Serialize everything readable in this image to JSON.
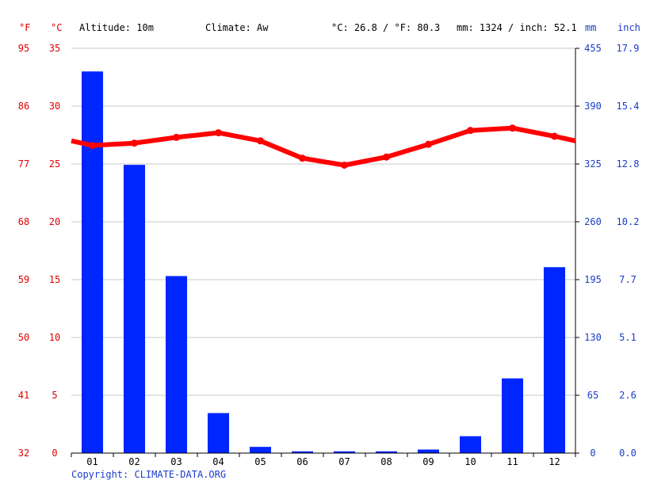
{
  "header": {
    "altitude": "Altitude: 10m",
    "climate": "Climate: Aw",
    "avg_temp": "°C: 26.8 / °F: 80.3",
    "precip_total": "mm: 1324 / inch: 52.1"
  },
  "units": {
    "fahrenheit": "°F",
    "celsius": "°C",
    "mm": "mm",
    "inch": "inch"
  },
  "copyright": "Copyright: CLIMATE-DATA.ORG",
  "colors": {
    "temperature": "#ff0000",
    "precipitation": "#0026ff",
    "grid": "#c8c8c8",
    "axis_text_temp": "#e00000",
    "axis_text_precip": "#1a3cc8"
  },
  "chart_data": {
    "type": "bar",
    "categories": [
      "01",
      "02",
      "03",
      "04",
      "05",
      "06",
      "07",
      "08",
      "09",
      "10",
      "11",
      "12"
    ],
    "series": [
      {
        "type": "bar",
        "axis": "right",
        "values": [
          429,
          324,
          199,
          45,
          7,
          2,
          2,
          2,
          4,
          19,
          84,
          209
        ]
      },
      {
        "type": "line",
        "axis": "left",
        "values": [
          26.6,
          26.8,
          27.3,
          27.7,
          27.0,
          25.5,
          24.9,
          25.6,
          26.7,
          27.9,
          28.1,
          27.4
        ]
      }
    ],
    "left_axis": {
      "celsius_ticks": [
        "35",
        "30",
        "25",
        "20",
        "15",
        "10",
        "5",
        "0"
      ],
      "fahrenheit_ticks": [
        "95",
        "86",
        "77",
        "68",
        "59",
        "50",
        "41",
        "32"
      ],
      "ylim": [
        0,
        35
      ]
    },
    "right_axis": {
      "mm_ticks": [
        "455",
        "390",
        "325",
        "260",
        "195",
        "130",
        "65",
        "0"
      ],
      "inch_ticks": [
        "17.9",
        "15.4",
        "12.8",
        "10.2",
        "7.7",
        "5.1",
        "2.6",
        "0.0"
      ],
      "ylim": [
        0,
        455
      ]
    },
    "grid": true
  }
}
